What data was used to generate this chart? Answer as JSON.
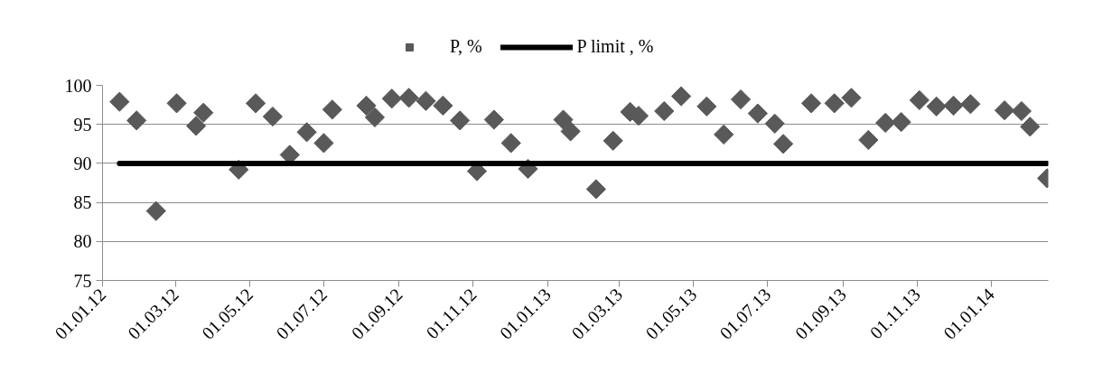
{
  "chart_data": {
    "type": "scatter",
    "legend": "top",
    "grid": "y",
    "xlim": [
      "2012-01-01",
      "2014-02-17"
    ],
    "xticks": [
      {
        "value": "2012-01-01",
        "label": "01.01.12"
      },
      {
        "value": "2012-03-01",
        "label": "01.03.12"
      },
      {
        "value": "2012-05-01",
        "label": "01.05.12"
      },
      {
        "value": "2012-07-01",
        "label": "01.07.12"
      },
      {
        "value": "2012-09-01",
        "label": "01.09.12"
      },
      {
        "value": "2012-11-01",
        "label": "01.11.12"
      },
      {
        "value": "2013-01-01",
        "label": "01.01.13"
      },
      {
        "value": "2013-03-01",
        "label": "01.03.13"
      },
      {
        "value": "2013-05-01",
        "label": "01.05.13"
      },
      {
        "value": "2013-07-01",
        "label": "01.07.13"
      },
      {
        "value": "2013-09-01",
        "label": "01.09.13"
      },
      {
        "value": "2013-11-01",
        "label": "01.11.13"
      },
      {
        "value": "2014-01-01",
        "label": "01.01.14"
      }
    ],
    "ylim": [
      75,
      100
    ],
    "yticks": [
      75,
      80,
      85,
      90,
      95,
      100
    ],
    "series": [
      {
        "name": "P, %",
        "color": "#595959",
        "marker": "diamond",
        "x": [
          "2012-01-15",
          "2012-01-29",
          "2012-02-14",
          "2012-03-02",
          "2012-03-18",
          "2012-03-24",
          "2012-04-22",
          "2012-05-06",
          "2012-05-20",
          "2012-06-03",
          "2012-06-17",
          "2012-07-01",
          "2012-07-08",
          "2012-08-05",
          "2012-08-12",
          "2012-08-26",
          "2012-09-09",
          "2012-09-23",
          "2012-10-07",
          "2012-10-21",
          "2012-11-04",
          "2012-11-18",
          "2012-12-02",
          "2012-12-16",
          "2013-01-14",
          "2013-01-20",
          "2013-02-10",
          "2013-02-24",
          "2013-03-10",
          "2013-03-17",
          "2013-04-07",
          "2013-04-21",
          "2013-05-12",
          "2013-05-26",
          "2013-06-09",
          "2013-06-23",
          "2013-07-07",
          "2013-07-14",
          "2013-08-06",
          "2013-08-25",
          "2013-09-08",
          "2013-09-22",
          "2013-10-06",
          "2013-10-19",
          "2013-11-03",
          "2013-11-17",
          "2013-12-01",
          "2013-12-15",
          "2014-01-12",
          "2014-01-26",
          "2014-02-02",
          "2014-02-16"
        ],
        "values": [
          97.9,
          95.5,
          83.9,
          97.7,
          94.8,
          96.5,
          89.2,
          97.7,
          96.0,
          91.1,
          94.0,
          92.6,
          96.9,
          97.4,
          95.9,
          98.3,
          98.4,
          98.0,
          97.4,
          95.5,
          89.0,
          95.6,
          92.6,
          89.3,
          95.6,
          94.1,
          86.7,
          92.9,
          96.6,
          96.1,
          96.7,
          98.6,
          97.3,
          93.7,
          98.2,
          96.4,
          95.1,
          92.5,
          97.7,
          97.7,
          98.4,
          93.0,
          95.2,
          95.3,
          98.1,
          97.3,
          97.4,
          97.6,
          96.8,
          96.7,
          94.7,
          88.1
        ]
      },
      {
        "name": "P limit , %",
        "type": "line",
        "marker": "none",
        "color": "#000000",
        "x": [
          "2012-01-15",
          "2014-02-16"
        ],
        "values": [
          90,
          90
        ]
      }
    ]
  }
}
